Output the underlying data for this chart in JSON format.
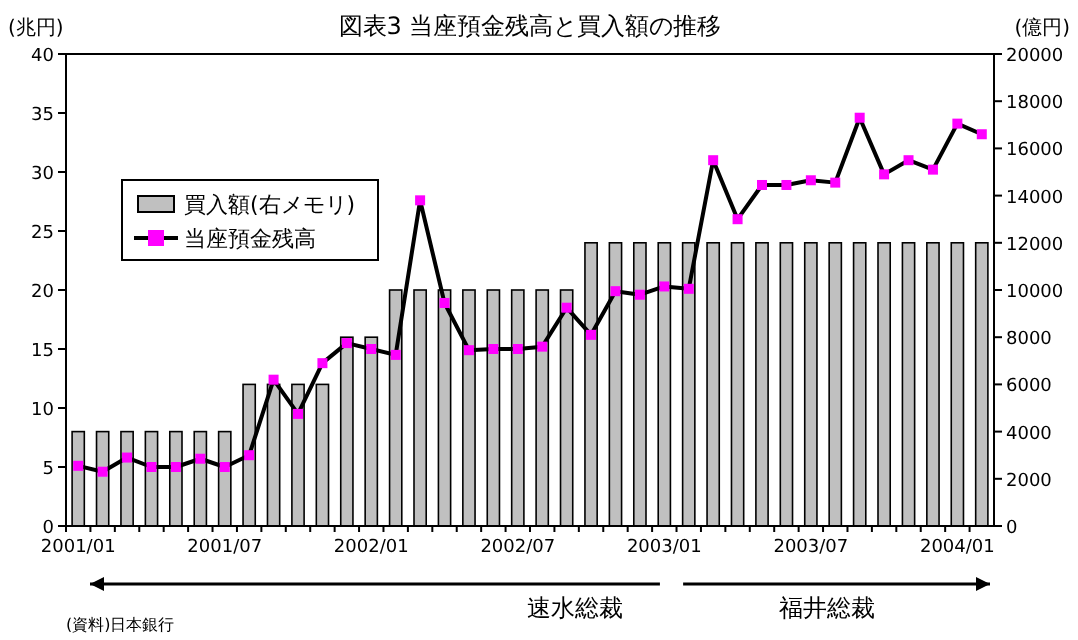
{
  "chart_data": {
    "type": "bar",
    "title": "図表3  当座預金残高と買入額の推移",
    "ylabel": "(兆円)",
    "y2label": "(億円)",
    "categories": [
      "2001/01",
      null,
      null,
      null,
      null,
      null,
      "2001/07",
      null,
      null,
      null,
      null,
      null,
      "2002/01",
      null,
      null,
      null,
      null,
      null,
      "2002/07",
      null,
      null,
      null,
      null,
      null,
      "2003/01",
      null,
      null,
      null,
      null,
      null,
      "2003/07",
      null,
      null,
      null,
      null,
      null,
      "2004/01",
      null
    ],
    "series": [
      {
        "name": "買入額(右メモリ)",
        "axis": "y2",
        "color": "#c0c0c0",
        "values": [
          4000,
          4000,
          4000,
          4000,
          4000,
          4000,
          4000,
          6000,
          6000,
          6000,
          6000,
          8000,
          8000,
          10000,
          10000,
          10000,
          10000,
          10000,
          10000,
          10000,
          10000,
          12000,
          12000,
          12000,
          12000,
          12000,
          12000,
          12000,
          12000,
          12000,
          12000,
          12000,
          12000,
          12000,
          12000,
          12000,
          12000,
          12000
        ]
      },
      {
        "name": "当座預金残高",
        "type": "line",
        "color": "#ff00ff",
        "marker": "square",
        "values": [
          5.1,
          4.6,
          5.8,
          5.0,
          5.0,
          5.7,
          5.0,
          6.0,
          12.4,
          9.5,
          13.8,
          15.5,
          15.0,
          14.5,
          27.6,
          18.9,
          14.9,
          15.0,
          15.0,
          15.2,
          18.5,
          16.2,
          19.9,
          19.6,
          20.3,
          20.1,
          31.0,
          26.0,
          28.9,
          28.9,
          29.3,
          29.1,
          34.6,
          29.8,
          31.0,
          30.2,
          34.1,
          33.2
        ]
      }
    ],
    "ylim": [
      0,
      40
    ],
    "yticks": [
      0,
      5,
      10,
      15,
      20,
      25,
      30,
      35,
      40
    ],
    "y2lim": [
      0,
      20000
    ],
    "y2ticks": [
      0,
      2000,
      4000,
      6000,
      8000,
      10000,
      12000,
      14000,
      16000,
      18000,
      20000
    ],
    "legend": "top left",
    "grid": false,
    "annotations": [
      "速水総裁",
      "福井総裁",
      "(資料)日本銀行"
    ]
  }
}
